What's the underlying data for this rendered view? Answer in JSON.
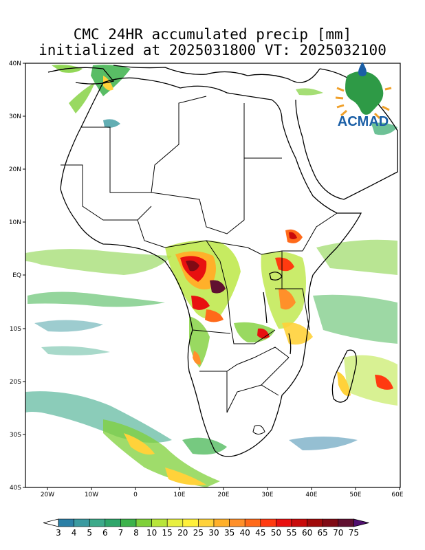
{
  "title": {
    "line1": "CMC 24HR accumulated precip [mm]",
    "line2": "initialized at 2025031800 VT: 2025032100"
  },
  "map": {
    "lat_labels": [
      "40N",
      "30N",
      "20N",
      "10N",
      "EQ",
      "10S",
      "20S",
      "30S",
      "40S"
    ],
    "lon_labels": [
      "20W",
      "10W",
      "0",
      "10E",
      "20E",
      "30E",
      "40E",
      "50E",
      "60E"
    ],
    "extent": {
      "lon_min": -25,
      "lon_max": 60,
      "lat_min": -40,
      "lat_max": 40
    }
  },
  "logo": {
    "text": "ACMAD",
    "colors": {
      "text": "#1b5fa6",
      "continent": "#2e9a46",
      "sun": "#f0a02a",
      "drop": "#1b5fa6"
    }
  },
  "colorbar": {
    "labels": [
      "3",
      "4",
      "5",
      "6",
      "7",
      "8",
      "10",
      "15",
      "20",
      "25",
      "30",
      "35",
      "40",
      "45",
      "50",
      "55",
      "60",
      "65",
      "70",
      "75"
    ],
    "colors": [
      "#2b7fa6",
      "#3b9aa0",
      "#3daa8a",
      "#2fa66a",
      "#3cb24a",
      "#7fd03a",
      "#b8e63a",
      "#e8f040",
      "#fff03a",
      "#ffd23a",
      "#ffb02a",
      "#ff902a",
      "#ff6a1a",
      "#ff3a10",
      "#e81010",
      "#c80a0a",
      "#a00a0a",
      "#800a14",
      "#601030",
      "#501070"
    ]
  }
}
